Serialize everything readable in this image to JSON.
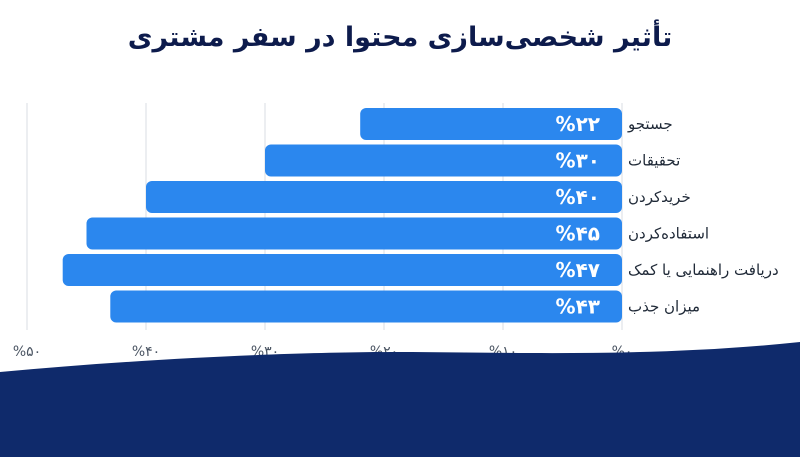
{
  "title": "تأثیر شخصی‌سازی محتوا در سفر مشتری",
  "colors": {
    "bar": "#2b87ee",
    "title": "#0d1b4c",
    "wave": "#0f2a6b",
    "grid": "#d9dde3"
  },
  "chart_data": {
    "type": "bar",
    "orientation": "horizontal",
    "direction": "right-to-left",
    "title": "تأثیر شخصی‌سازی محتوا در سفر مشتری",
    "categories": [
      "جستجو",
      "تحقیقات",
      "خریدکردن",
      "استفاده‌کردن",
      "دریافت راهنمایی یا کمک",
      "میزان جذب"
    ],
    "values": [
      22,
      30,
      40,
      45,
      47,
      43
    ],
    "value_labels": [
      "%۲۲",
      "%۳۰",
      "%۴۰",
      "%۴۵",
      "%۴۷",
      "%۴۳"
    ],
    "xlim": [
      0,
      50
    ],
    "x_ticks": [
      0,
      10,
      20,
      30,
      40,
      50
    ],
    "x_tick_labels": [
      "%۰",
      "%۱۰",
      "%۲۰",
      "%۳۰",
      "%۴۰",
      "%۵۰"
    ],
    "grid": true
  }
}
